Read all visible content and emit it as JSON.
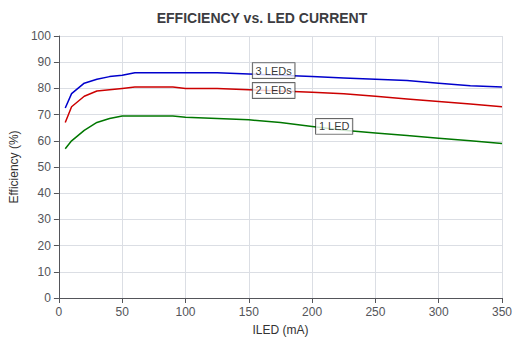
{
  "chart_data": {
    "type": "line",
    "title": "EFFICIENCY vs. LED CURRENT",
    "xlabel": "ILED (mA)",
    "ylabel": "Efficiency (%)",
    "x": [
      5,
      10,
      20,
      30,
      40,
      50,
      60,
      70,
      80,
      90,
      100,
      125,
      150,
      175,
      200,
      225,
      250,
      275,
      300,
      325,
      350
    ],
    "series": [
      {
        "name": "3 LEDs",
        "color": "#0000cc",
        "values": [
          72.5,
          78,
          82,
          83.5,
          84.5,
          85,
          86,
          86,
          86,
          86,
          86,
          86,
          85.5,
          85,
          84.5,
          84,
          83.5,
          83,
          82,
          81,
          80.5
        ]
      },
      {
        "name": "2 LEDs",
        "color": "#cc0000",
        "values": [
          67,
          73,
          77,
          79,
          79.5,
          80,
          80.5,
          80.5,
          80.5,
          80.5,
          80,
          80,
          79.5,
          79,
          78.5,
          78,
          77,
          76,
          75,
          74,
          73
        ]
      },
      {
        "name": "1 LED",
        "color": "#007700",
        "values": [
          57,
          60,
          64,
          67,
          68.5,
          69.5,
          69.5,
          69.5,
          69.5,
          69.5,
          69,
          68.5,
          68,
          67,
          65.5,
          64,
          63,
          62,
          61,
          60,
          59
        ]
      }
    ],
    "annotations": [
      {
        "text": "3 LEDs",
        "x": 153,
        "y": 86.8
      },
      {
        "text": "2 LEDs",
        "x": 153,
        "y": 79.2
      },
      {
        "text": "1 LED",
        "x": 203,
        "y": 65.5
      }
    ],
    "xlim": [
      0,
      350
    ],
    "xticks": [
      0,
      50,
      100,
      150,
      200,
      250,
      300,
      350
    ],
    "ylim": [
      0,
      100
    ],
    "yticks": [
      0,
      10,
      20,
      30,
      40,
      50,
      60,
      70,
      80,
      90,
      100
    ],
    "grid": true
  }
}
